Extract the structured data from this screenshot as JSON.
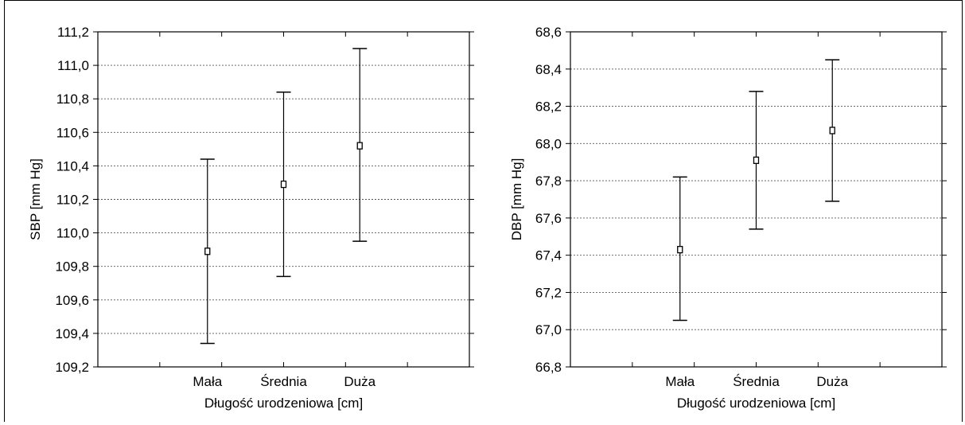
{
  "chart_data": [
    {
      "type": "errorbar",
      "categories": [
        "Mała",
        "Średnia",
        "Duża"
      ],
      "series": [
        {
          "values": [
            109.89,
            110.29,
            110.52
          ],
          "lower": [
            109.34,
            109.74,
            109.95
          ],
          "upper": [
            110.44,
            110.84,
            111.1
          ]
        }
      ],
      "xlabel": "Długość urodzeniowa [cm]",
      "ylabel": "SBP [mm Hg]",
      "ylim": [
        109.2,
        111.2
      ],
      "yticks": [
        "109,2",
        "109,4",
        "109,6",
        "109,8",
        "110,0",
        "110,2",
        "110,4",
        "110,6",
        "110,8",
        "111,0",
        "111,2"
      ],
      "grid": true
    },
    {
      "type": "errorbar",
      "categories": [
        "Mała",
        "Średnia",
        "Duża"
      ],
      "series": [
        {
          "values": [
            67.43,
            67.91,
            68.07
          ],
          "lower": [
            67.05,
            67.54,
            67.69
          ],
          "upper": [
            67.82,
            68.28,
            68.45
          ]
        }
      ],
      "xlabel": "Długość urodzeniowa [cm]",
      "ylabel": "DBP [mm Hg]",
      "ylim": [
        66.8,
        68.6
      ],
      "yticks": [
        "66,8",
        "67,0",
        "67,2",
        "67,4",
        "67,6",
        "67,8",
        "68,0",
        "68,2",
        "68,4",
        "68,6"
      ],
      "grid": true
    }
  ]
}
